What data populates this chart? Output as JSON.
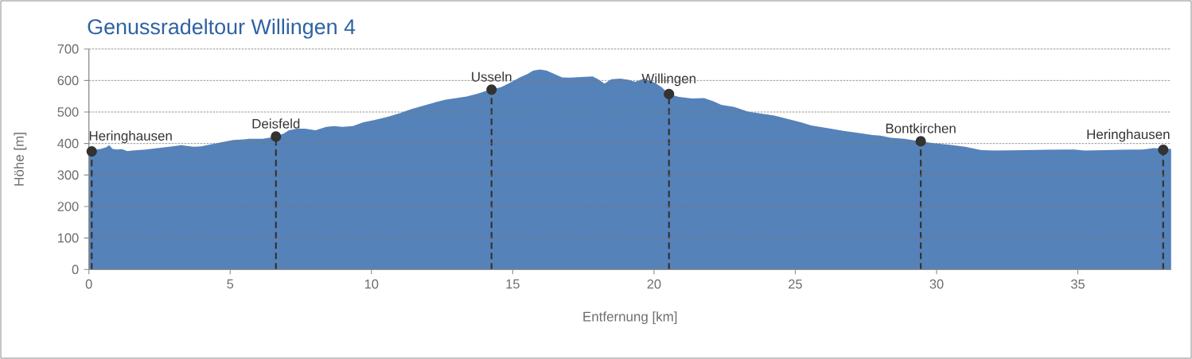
{
  "chart_data": {
    "type": "area",
    "title": "Genussradeltour Willingen 4",
    "xlabel": "Entfernung [km]",
    "ylabel": "Höhe [m]",
    "xlim": [
      0,
      38.3
    ],
    "ylim": [
      0,
      700
    ],
    "xticks": [
      0,
      5,
      10,
      15,
      20,
      25,
      30,
      35
    ],
    "yticks": [
      0,
      100,
      200,
      300,
      400,
      500,
      600,
      700
    ],
    "grid": "y",
    "series": [
      {
        "color": "#5582b9",
        "x": [
          0,
          0.1,
          0.23,
          0.42,
          0.61,
          0.72,
          0.84,
          0.99,
          1.17,
          1.36,
          1.55,
          2.02,
          2.49,
          2.96,
          3.28,
          3.42,
          3.71,
          3.99,
          4.36,
          4.74,
          5.11,
          5.49,
          5.68,
          6.15,
          6.62,
          6.9,
          7.08,
          7.37,
          7.65,
          8.02,
          8.4,
          8.68,
          8.96,
          9.34,
          9.71,
          10.09,
          10.56,
          11.03,
          11.4,
          11.87,
          12.34,
          12.62,
          13.0,
          13.37,
          13.75,
          14.03,
          14.25,
          14.59,
          14.97,
          15.25,
          15.53,
          15.72,
          15.95,
          16.19,
          16.47,
          16.75,
          17.03,
          17.41,
          17.83,
          18.02,
          18.25,
          18.49,
          18.81,
          19.1,
          19.33,
          19.66,
          20.03,
          20.27,
          20.53,
          20.88,
          21.35,
          21.77,
          22.1,
          22.38,
          22.85,
          23.32,
          23.79,
          24.26,
          24.73,
          25.2,
          25.57,
          26.13,
          26.7,
          27.26,
          27.73,
          28.01,
          28.39,
          28.86,
          29.44,
          29.89,
          30.45,
          31.01,
          31.58,
          32.05,
          33.17,
          33.92,
          34.86,
          35.24,
          35.99,
          36.55,
          37.3,
          37.68,
          38.02,
          38.3
        ],
        "values": [
          383,
          380,
          380,
          383,
          388,
          395,
          383,
          381,
          382,
          376,
          378,
          381,
          386,
          391,
          395,
          393,
          390,
          391,
          398,
          405,
          411,
          413,
          415,
          415,
          422,
          432,
          442,
          447,
          447,
          442,
          453,
          455,
          453,
          455,
          467,
          474,
          484,
          497,
          509,
          521,
          533,
          539,
          544,
          549,
          558,
          566,
          571,
          579,
          596,
          610,
          621,
          631,
          635,
          632,
          621,
          610,
          609,
          611,
          613,
          604,
          590,
          604,
          606,
          602,
          596,
          606,
          593,
          579,
          557,
          548,
          543,
          544,
          534,
          523,
          516,
          501,
          495,
          489,
          478,
          467,
          457,
          449,
          440,
          433,
          427,
          425,
          418,
          415,
          407,
          401,
          396,
          390,
          379,
          378,
          379,
          380,
          381,
          378,
          379,
          380,
          381,
          385,
          384,
          383
        ]
      },
      {
        "type": "lollipop",
        "color": "#333333",
        "marker": "circle",
        "line_style": "dashed",
        "x": [
          0.1,
          6.62,
          14.25,
          20.53,
          29.44,
          38.02
        ],
        "values": [
          375,
          422,
          571,
          557,
          407,
          380
        ]
      }
    ],
    "annotations": [
      {
        "text": "Heringhausen",
        "x": 0.1,
        "y": 375
      },
      {
        "text": "Deisfeld",
        "x": 6.62,
        "y": 422
      },
      {
        "text": "Usseln",
        "x": 14.25,
        "y": 571
      },
      {
        "text": "Willingen",
        "x": 20.53,
        "y": 557
      },
      {
        "text": "Bontkirchen",
        "x": 29.44,
        "y": 407
      },
      {
        "text": "Heringhausen",
        "x": 38.02,
        "y": 380
      }
    ]
  }
}
